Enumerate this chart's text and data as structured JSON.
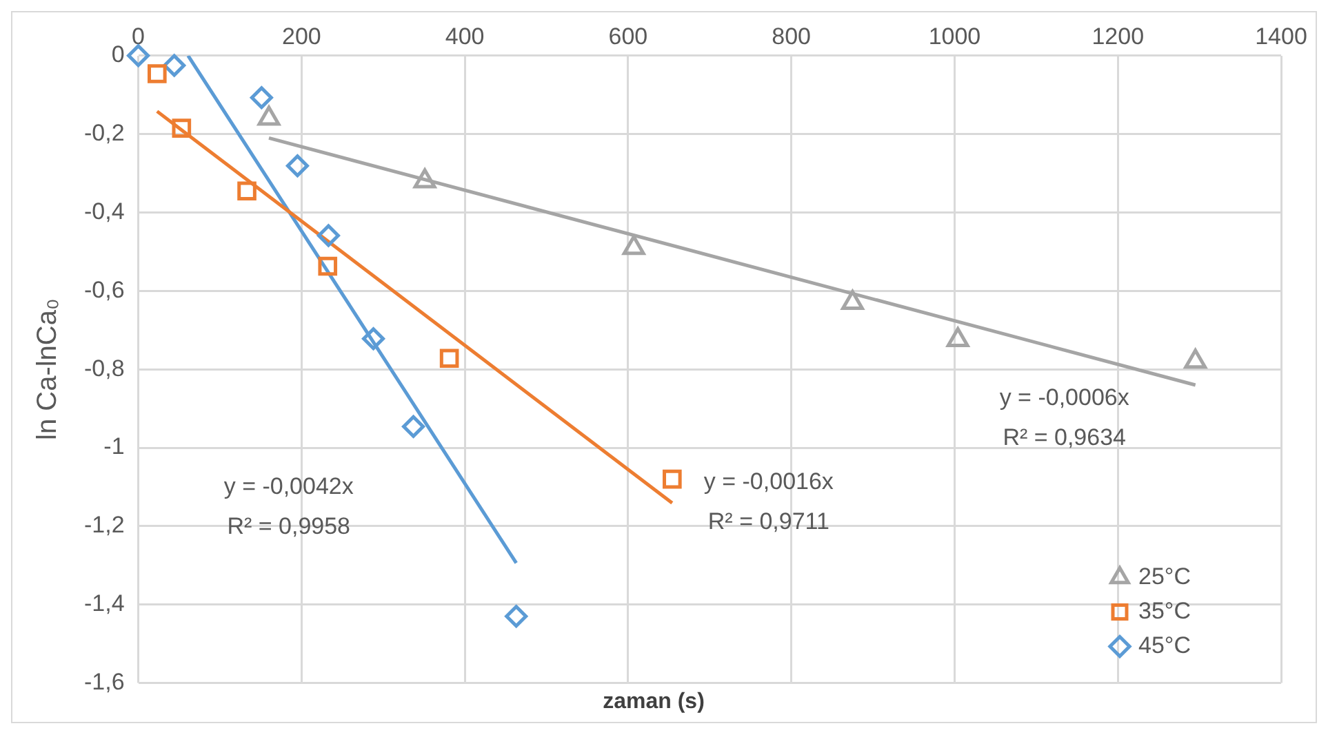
{
  "chart_data": {
    "type": "scatter",
    "xlabel": "zaman (s)",
    "ylabel": "ln Ca-lnCa₀",
    "xlim": [
      0,
      1400
    ],
    "xticks": [
      0,
      200,
      400,
      600,
      800,
      1000,
      1200,
      1400
    ],
    "ylim": [
      -1.6,
      0
    ],
    "yticks": [
      {
        "value": 0,
        "label": "0"
      },
      {
        "value": -0.2,
        "label": "-0,2"
      },
      {
        "value": -0.4,
        "label": "-0,4"
      },
      {
        "value": -0.6,
        "label": "-0,6"
      },
      {
        "value": -0.8,
        "label": "-0,8"
      },
      {
        "value": -1,
        "label": "-1"
      },
      {
        "value": -1.2,
        "label": "-1,2"
      },
      {
        "value": -1.4,
        "label": "-1,4"
      },
      {
        "value": -1.6,
        "label": "-1,6"
      }
    ],
    "grid": true,
    "legend": "bottom right",
    "series": [
      {
        "name": "25°C",
        "color": "#a5a5a5",
        "marker": "triangle",
        "x": [
          160,
          351,
          607,
          875,
          1004,
          1295
        ],
        "values": [
          -0.16,
          -0.32,
          -0.49,
          -0.63,
          -0.725,
          -0.78
        ]
      },
      {
        "name": "35°C",
        "color": "#ed7d31",
        "marker": "square",
        "x": [
          23,
          53,
          133,
          232,
          381,
          654
        ],
        "values": [
          -0.046,
          -0.185,
          -0.345,
          -0.537,
          -0.772,
          -1.08
        ]
      },
      {
        "name": "45°C",
        "color": "#5b9bd5",
        "marker": "diamond",
        "x": [
          0,
          44,
          151,
          195,
          233,
          288,
          337,
          463
        ],
        "values": [
          0,
          -0.025,
          -0.107,
          -0.281,
          -0.459,
          -0.722,
          -0.946,
          -1.43
        ]
      },
      {
        "type": "line",
        "color": "#a5a5a5",
        "x": [
          160,
          1295
        ],
        "values": [
          -0.21,
          -0.84
        ]
      },
      {
        "type": "line",
        "color": "#ed7d31",
        "x": [
          23,
          654
        ],
        "values": [
          -0.142,
          -1.141
        ]
      },
      {
        "type": "line",
        "color": "#5b9bd5",
        "x": [
          61,
          463
        ],
        "values": [
          0,
          -1.294
        ]
      }
    ],
    "annotations": [
      "y = -0,0006x",
      "R² = 0,9634",
      "y = -0,0016x",
      "R² = 0,9711",
      "y = -0,0042x",
      "R² = 0,9958"
    ]
  }
}
